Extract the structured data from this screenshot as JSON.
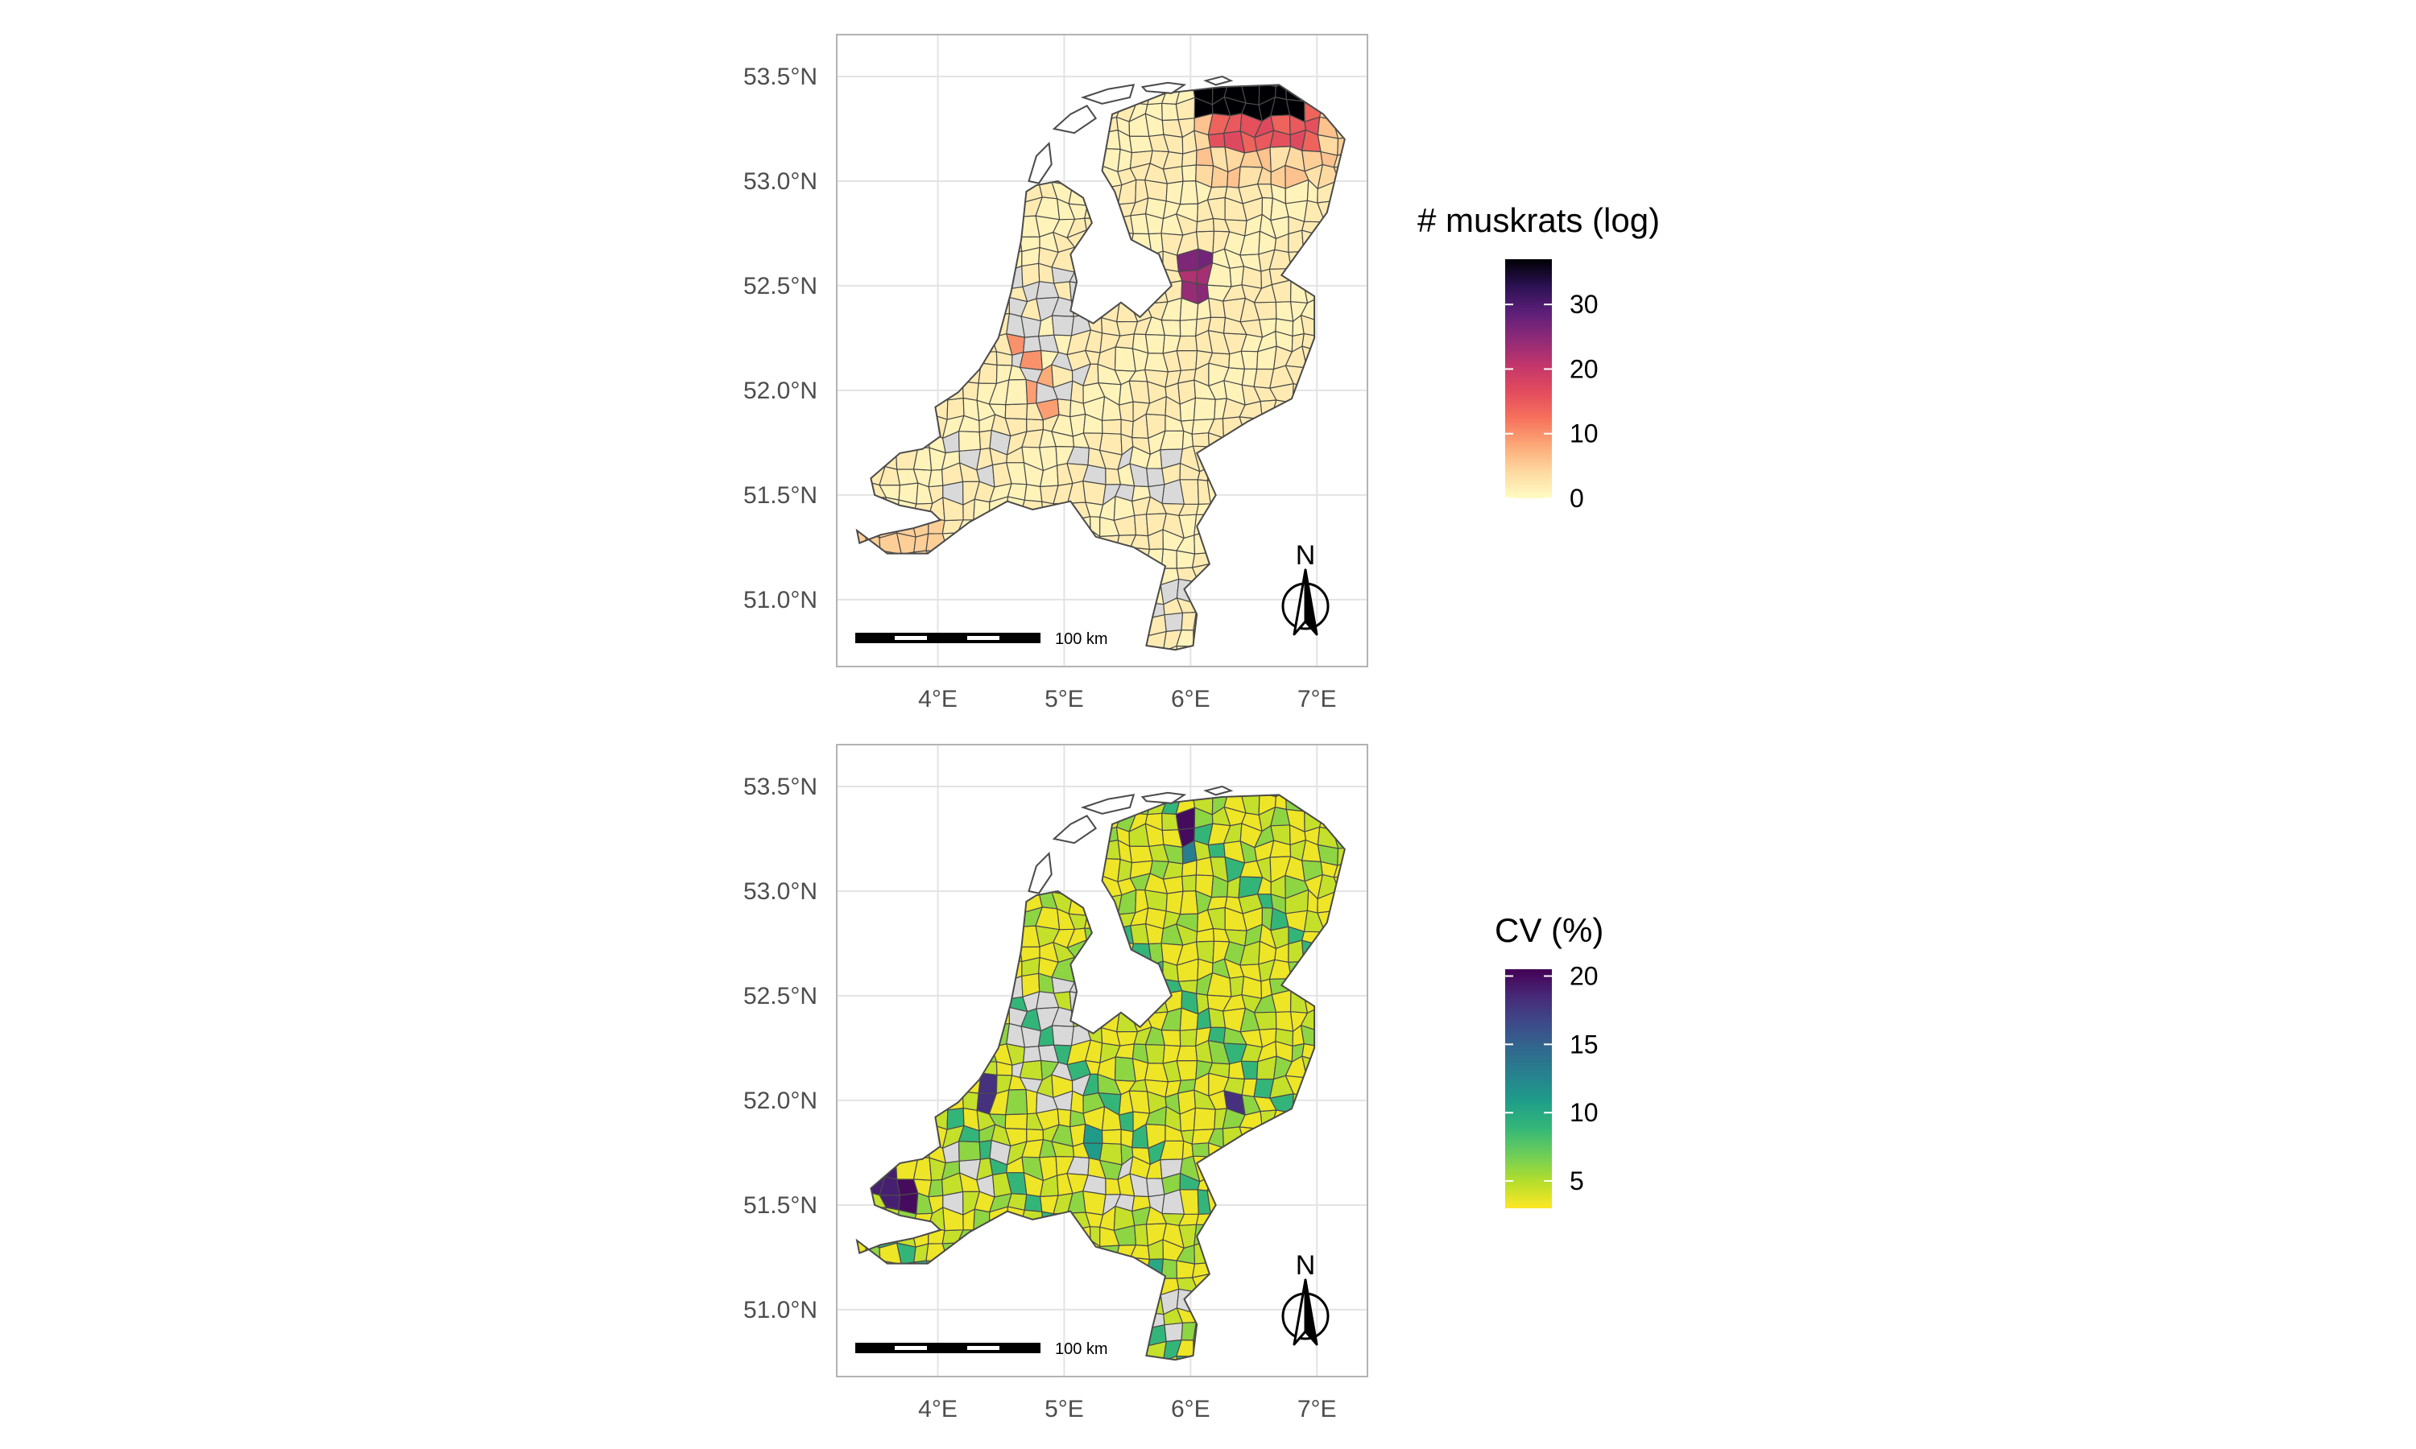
{
  "maps": [
    {
      "id": "muskrats",
      "legend": {
        "title": "# muskrats (log)",
        "palette": [
          "#fffcc3",
          "#fed9a0",
          "#fca877",
          "#f6725c",
          "#e34c5d",
          "#c2366b",
          "#8f2a78",
          "#5c1f79",
          "#2b1152",
          "#000004"
        ],
        "domain": [
          0,
          37
        ],
        "ticks": [
          "0",
          "10",
          "20",
          "30"
        ],
        "tick_values": [
          0,
          10,
          20,
          30
        ]
      },
      "special_regions": [
        {
          "name": "north-hotspot",
          "value": 37
        },
        {
          "name": "northeast",
          "value": 16
        },
        {
          "name": "center-east",
          "value": 24
        },
        {
          "name": "west-1",
          "value": 10
        },
        {
          "name": "west-2",
          "value": 9
        }
      ]
    },
    {
      "id": "cv",
      "legend": {
        "title": "CV (%)",
        "palette": [
          "#fde725",
          "#b5de2b",
          "#6ece58",
          "#35b779",
          "#1f9e89",
          "#26828e",
          "#31688e",
          "#3e4989",
          "#482878",
          "#440154"
        ],
        "domain": [
          3,
          20.5
        ],
        "ticks": [
          "5",
          "10",
          "15",
          "20"
        ],
        "tick_values": [
          5,
          10,
          15,
          20
        ]
      }
    }
  ],
  "axes": {
    "lat_labels": [
      "53.5°N",
      "53.0°N",
      "52.5°N",
      "52.0°N",
      "51.5°N",
      "51.0°N"
    ],
    "lat_values": [
      53.5,
      53.0,
      52.5,
      52.0,
      51.5,
      51.0
    ],
    "lon_labels": [
      "4°E",
      "5°E",
      "6°E",
      "7°E"
    ],
    "lon_values": [
      4,
      5,
      6,
      7
    ],
    "lon_range": [
      3.2,
      7.4
    ],
    "lat_range": [
      50.68,
      53.7
    ]
  },
  "scale_bar": {
    "label": "100 km"
  },
  "north_arrow": {
    "label": "N"
  },
  "colors": {
    "missing": "#d9d9d9",
    "border": "#4a4a4a",
    "panel_border": "#b3b3b3",
    "grid": "#e3e3e3"
  }
}
